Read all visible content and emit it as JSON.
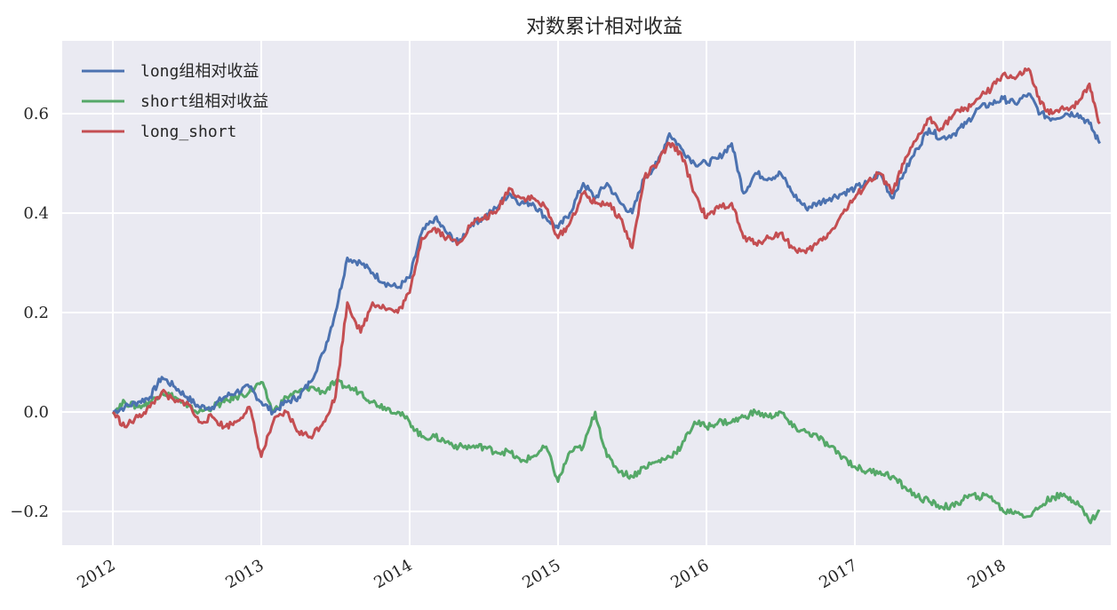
{
  "chart_data": {
    "type": "line",
    "title": "对数累计相对收益",
    "xlabel": "",
    "ylabel": "",
    "x_ticks": [
      "2012",
      "2013",
      "2014",
      "2015",
      "2016",
      "2017",
      "2018"
    ],
    "y_ticks": [
      "−0.2",
      "0.0",
      "0.2",
      "0.4",
      "0.6"
    ],
    "y_tick_values": [
      -0.2,
      0.0,
      0.2,
      0.4,
      0.6
    ],
    "ylim": [
      -0.27,
      0.75
    ],
    "xlim": [
      2011.66,
      2018.72
    ],
    "grid": true,
    "legend_position": "upper left",
    "x": [
      2012.0,
      2012.08,
      2012.17,
      2012.25,
      2012.33,
      2012.42,
      2012.5,
      2012.58,
      2012.67,
      2012.75,
      2012.83,
      2012.92,
      2013.0,
      2013.08,
      2013.17,
      2013.25,
      2013.33,
      2013.42,
      2013.5,
      2013.58,
      2013.67,
      2013.75,
      2013.83,
      2013.92,
      2014.0,
      2014.08,
      2014.17,
      2014.25,
      2014.33,
      2014.42,
      2014.5,
      2014.58,
      2014.67,
      2014.75,
      2014.83,
      2014.92,
      2015.0,
      2015.08,
      2015.17,
      2015.25,
      2015.33,
      2015.42,
      2015.5,
      2015.58,
      2015.67,
      2015.75,
      2015.83,
      2015.92,
      2016.0,
      2016.08,
      2016.17,
      2016.25,
      2016.33,
      2016.42,
      2016.5,
      2016.58,
      2016.67,
      2016.75,
      2016.83,
      2016.92,
      2017.0,
      2017.08,
      2017.17,
      2017.25,
      2017.33,
      2017.42,
      2017.5,
      2017.58,
      2017.67,
      2017.75,
      2017.83,
      2017.92,
      2018.0,
      2018.08,
      2018.17,
      2018.25,
      2018.33,
      2018.42,
      2018.5,
      2018.58,
      2018.65
    ],
    "series": [
      {
        "name": "long组相对收益",
        "color": "#4c72b0",
        "values": [
          0.0,
          0.01,
          0.02,
          0.03,
          0.07,
          0.05,
          0.03,
          0.01,
          0.01,
          0.03,
          0.04,
          0.05,
          0.02,
          0.0,
          0.02,
          0.03,
          0.06,
          0.12,
          0.2,
          0.31,
          0.3,
          0.28,
          0.26,
          0.25,
          0.27,
          0.36,
          0.39,
          0.36,
          0.34,
          0.38,
          0.39,
          0.41,
          0.44,
          0.42,
          0.42,
          0.39,
          0.37,
          0.4,
          0.46,
          0.43,
          0.46,
          0.42,
          0.4,
          0.47,
          0.5,
          0.56,
          0.53,
          0.5,
          0.5,
          0.51,
          0.54,
          0.44,
          0.48,
          0.47,
          0.48,
          0.44,
          0.41,
          0.42,
          0.43,
          0.44,
          0.45,
          0.46,
          0.48,
          0.43,
          0.48,
          0.53,
          0.57,
          0.55,
          0.56,
          0.58,
          0.61,
          0.62,
          0.63,
          0.62,
          0.64,
          0.6,
          0.59,
          0.6,
          0.6,
          0.58,
          0.54
        ]
      },
      {
        "name": "short组相对收益",
        "color": "#55a868",
        "values": [
          0.0,
          0.02,
          0.01,
          0.02,
          0.04,
          0.03,
          0.01,
          0.0,
          0.01,
          0.02,
          0.03,
          0.04,
          0.06,
          0.0,
          0.03,
          0.04,
          0.05,
          0.04,
          0.06,
          0.05,
          0.04,
          0.02,
          0.01,
          0.0,
          -0.02,
          -0.05,
          -0.05,
          -0.06,
          -0.07,
          -0.07,
          -0.07,
          -0.08,
          -0.08,
          -0.1,
          -0.09,
          -0.07,
          -0.14,
          -0.08,
          -0.07,
          -0.0,
          -0.09,
          -0.12,
          -0.13,
          -0.11,
          -0.1,
          -0.09,
          -0.07,
          -0.02,
          -0.03,
          -0.02,
          -0.02,
          -0.01,
          -0.0,
          -0.01,
          0.0,
          -0.03,
          -0.04,
          -0.05,
          -0.07,
          -0.09,
          -0.11,
          -0.12,
          -0.12,
          -0.13,
          -0.15,
          -0.17,
          -0.18,
          -0.19,
          -0.19,
          -0.17,
          -0.17,
          -0.17,
          -0.2,
          -0.2,
          -0.21,
          -0.19,
          -0.17,
          -0.17,
          -0.18,
          -0.22,
          -0.2
        ]
      },
      {
        "name": "long_short",
        "color": "#c44e52",
        "values": [
          0.0,
          -0.03,
          -0.01,
          0.01,
          0.04,
          0.02,
          0.02,
          -0.02,
          -0.01,
          -0.03,
          -0.02,
          0.01,
          -0.09,
          -0.02,
          0.0,
          -0.04,
          -0.05,
          -0.02,
          0.03,
          0.22,
          0.16,
          0.22,
          0.21,
          0.2,
          0.24,
          0.35,
          0.37,
          0.35,
          0.34,
          0.38,
          0.39,
          0.4,
          0.45,
          0.43,
          0.43,
          0.41,
          0.35,
          0.38,
          0.44,
          0.42,
          0.42,
          0.39,
          0.33,
          0.47,
          0.5,
          0.54,
          0.52,
          0.44,
          0.39,
          0.41,
          0.42,
          0.35,
          0.34,
          0.35,
          0.36,
          0.33,
          0.32,
          0.34,
          0.36,
          0.4,
          0.43,
          0.46,
          0.48,
          0.44,
          0.5,
          0.55,
          0.59,
          0.57,
          0.6,
          0.61,
          0.63,
          0.65,
          0.68,
          0.67,
          0.69,
          0.62,
          0.6,
          0.61,
          0.62,
          0.66,
          0.58
        ]
      }
    ]
  },
  "style": {
    "plot_background": "#eaeaf2",
    "grid_color": "#ffffff",
    "page_background": "#ffffff",
    "text_color": "#262626"
  }
}
